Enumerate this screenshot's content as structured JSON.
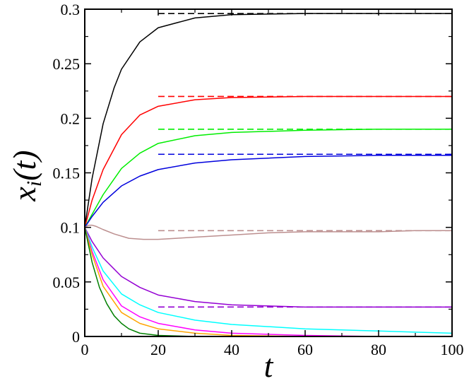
{
  "chart_data": {
    "type": "line",
    "xlabel": "t",
    "ylabel_base": "x",
    "ylabel_sub": "i",
    "ylabel_arg": "(t)",
    "xlim": [
      0,
      100
    ],
    "ylim": [
      0,
      0.3
    ],
    "xticks": [
      0,
      20,
      40,
      60,
      80,
      100
    ],
    "xtick_labels": [
      "0",
      "20",
      "40",
      "60",
      "80",
      "100"
    ],
    "yticks": [
      0,
      0.05,
      0.1,
      0.15,
      0.2,
      0.25,
      0.3
    ],
    "ytick_labels": [
      "0",
      "0.05",
      "0.1",
      "0.15",
      "0.2",
      "0.25",
      "0.3"
    ],
    "grid": false,
    "legend": "none",
    "series": [
      {
        "color": "#000000",
        "style": "solid",
        "x": [
          0,
          2,
          5,
          8,
          10,
          15,
          20,
          30,
          40,
          60,
          80,
          100
        ],
        "y": [
          0.1,
          0.145,
          0.195,
          0.228,
          0.245,
          0.27,
          0.283,
          0.292,
          0.295,
          0.296,
          0.296,
          0.296
        ]
      },
      {
        "color": "#ff0000",
        "style": "solid",
        "x": [
          0,
          2,
          5,
          10,
          15,
          20,
          30,
          40,
          60,
          80,
          100
        ],
        "y": [
          0.1,
          0.125,
          0.153,
          0.185,
          0.203,
          0.211,
          0.217,
          0.219,
          0.22,
          0.22,
          0.22
        ]
      },
      {
        "color": "#00ee00",
        "style": "solid",
        "x": [
          0,
          2,
          5,
          10,
          15,
          20,
          30,
          40,
          60,
          80,
          100
        ],
        "y": [
          0.1,
          0.112,
          0.13,
          0.154,
          0.168,
          0.177,
          0.184,
          0.187,
          0.189,
          0.19,
          0.19
        ]
      },
      {
        "color": "#0000dd",
        "style": "solid",
        "x": [
          0,
          2,
          5,
          10,
          15,
          20,
          30,
          40,
          60,
          80,
          100
        ],
        "y": [
          0.1,
          0.11,
          0.123,
          0.138,
          0.147,
          0.153,
          0.159,
          0.162,
          0.165,
          0.166,
          0.166
        ]
      },
      {
        "color": "#bc8f8f",
        "style": "solid",
        "x": [
          0,
          1,
          2,
          3,
          5,
          8,
          12,
          16,
          20,
          25,
          30,
          40,
          50,
          60,
          70,
          80,
          90,
          100
        ],
        "y": [
          0.1,
          0.102,
          0.102,
          0.101,
          0.098,
          0.094,
          0.09,
          0.089,
          0.089,
          0.09,
          0.091,
          0.093,
          0.095,
          0.096,
          0.096,
          0.096,
          0.097,
          0.097
        ]
      },
      {
        "color": "#9400d3",
        "style": "solid",
        "x": [
          0,
          2,
          5,
          10,
          15,
          20,
          30,
          40,
          60,
          80,
          100
        ],
        "y": [
          0.1,
          0.087,
          0.072,
          0.055,
          0.045,
          0.038,
          0.032,
          0.029,
          0.027,
          0.027,
          0.027
        ]
      },
      {
        "color": "#00ffff",
        "style": "solid",
        "x": [
          0,
          2,
          5,
          10,
          15,
          20,
          30,
          40,
          50,
          60,
          70,
          80,
          90,
          100
        ],
        "y": [
          0.1,
          0.082,
          0.06,
          0.039,
          0.029,
          0.022,
          0.015,
          0.011,
          0.009,
          0.007,
          0.006,
          0.005,
          0.004,
          0.003
        ]
      },
      {
        "color": "#ff00ff",
        "style": "solid",
        "x": [
          0,
          2,
          5,
          10,
          15,
          20,
          30,
          40,
          60,
          80,
          100
        ],
        "y": [
          0.1,
          0.078,
          0.052,
          0.028,
          0.018,
          0.012,
          0.006,
          0.003,
          0.001,
          0.0,
          0.0
        ]
      },
      {
        "color": "#ffa500",
        "style": "solid",
        "x": [
          0,
          2,
          5,
          10,
          15,
          20,
          30,
          40,
          60,
          80,
          100
        ],
        "y": [
          0.1,
          0.075,
          0.046,
          0.022,
          0.012,
          0.007,
          0.003,
          0.001,
          0.0,
          0.0,
          0.0
        ]
      },
      {
        "color": "#008000",
        "style": "solid",
        "x": [
          0,
          2,
          4,
          6,
          8,
          10,
          12,
          15,
          20,
          30,
          40,
          100
        ],
        "y": [
          0.1,
          0.068,
          0.045,
          0.03,
          0.019,
          0.012,
          0.007,
          0.003,
          0.001,
          0.0,
          0.0,
          0.0
        ]
      },
      {
        "color": "#000000",
        "style": "dashed",
        "x": [
          20,
          100
        ],
        "y": [
          0.296,
          0.296
        ]
      },
      {
        "color": "#ff0000",
        "style": "dashed",
        "x": [
          20,
          100
        ],
        "y": [
          0.22,
          0.22
        ]
      },
      {
        "color": "#00ee00",
        "style": "dashed",
        "x": [
          20,
          100
        ],
        "y": [
          0.19,
          0.19
        ]
      },
      {
        "color": "#0000dd",
        "style": "dashed",
        "x": [
          20,
          100
        ],
        "y": [
          0.167,
          0.167
        ]
      },
      {
        "color": "#bc8f8f",
        "style": "dashed",
        "x": [
          20,
          100
        ],
        "y": [
          0.097,
          0.097
        ]
      },
      {
        "color": "#9400d3",
        "style": "dashed",
        "x": [
          20,
          100
        ],
        "y": [
          0.027,
          0.027
        ]
      }
    ]
  }
}
